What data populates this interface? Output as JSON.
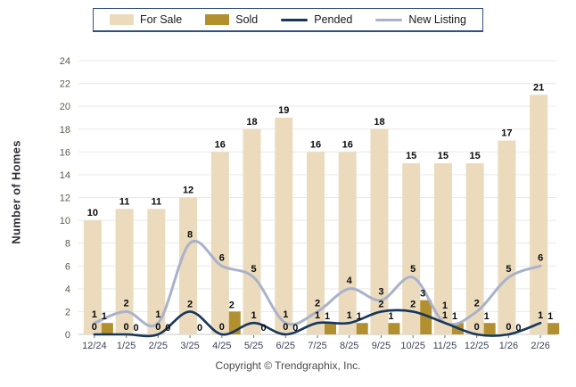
{
  "chart_data": {
    "type": "bar",
    "title": "",
    "ylabel": "Number of Homes",
    "xlabel": "",
    "ylim": [
      0,
      24
    ],
    "ytick_step": 2,
    "grid": true,
    "legend_position": "top",
    "categories": [
      "12/24",
      "1/25",
      "2/25",
      "3/25",
      "4/25",
      "5/25",
      "6/25",
      "7/25",
      "8/25",
      "9/25",
      "10/25",
      "11/25",
      "12/25",
      "1/26",
      "2/26"
    ],
    "series": [
      {
        "name": "For Sale",
        "type": "bar",
        "color": "#EBDBBC",
        "values": [
          10,
          11,
          11,
          12,
          16,
          18,
          19,
          16,
          16,
          18,
          15,
          15,
          15,
          17,
          21
        ]
      },
      {
        "name": "Sold",
        "type": "bar",
        "color": "#B3902F",
        "values": [
          1,
          0,
          0,
          0,
          2,
          0,
          0,
          1,
          1,
          1,
          3,
          1,
          1,
          0,
          1
        ]
      },
      {
        "name": "Pended",
        "type": "line",
        "color": "#17365D",
        "values": [
          0,
          0,
          0,
          2,
          0,
          1,
          0,
          1,
          1,
          2,
          2,
          1,
          0,
          0,
          1
        ]
      },
      {
        "name": "New Listing",
        "type": "line",
        "color": "#A9B2CB",
        "values": [
          1,
          2,
          1,
          8,
          6,
          5,
          1,
          2,
          4,
          3,
          5,
          1,
          2,
          5,
          6
        ]
      }
    ],
    "colors": {
      "grid": "#e9e9e6",
      "axis": "#c9c9c9",
      "tick": "#69707f",
      "y_tick_text": "#615a4c",
      "x_tick_text": "#3e4458",
      "data_label": "#0a0a0a"
    }
  },
  "footer": {
    "copyright": "Copyright © Trendgraphix, Inc."
  }
}
